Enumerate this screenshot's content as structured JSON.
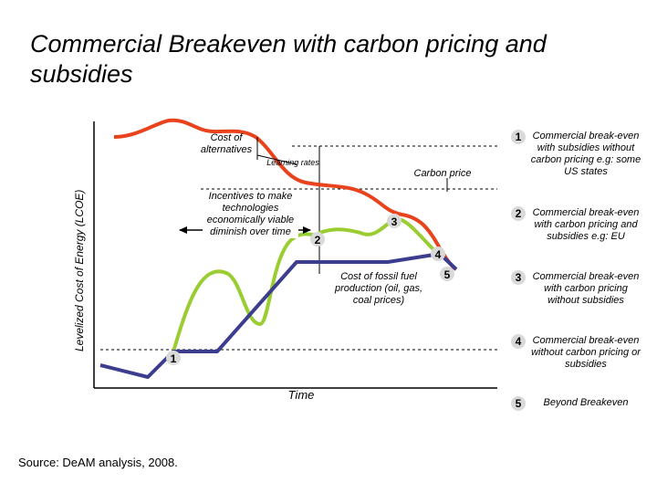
{
  "title": "Commercial Breakeven with carbon pricing and subsidies",
  "y_axis_label": "Levelized Cost of Energy (LCOE)",
  "x_axis_label": "Time",
  "annotations": {
    "cost_of_alternatives": "Cost of alternatives",
    "learning_rates": "Learning rates",
    "carbon_price": "Carbon price",
    "incentives": "Incentives to make technologies economically viable diminish over time",
    "fossil_cost": "Cost of fossil fuel production (oil, gas, coal prices)"
  },
  "markers": [
    "1",
    "2",
    "3",
    "4",
    "5"
  ],
  "legend": [
    {
      "num": "1",
      "text": "Commercial break-even with subsidies without carbon pricing e.g: some US states"
    },
    {
      "num": "2",
      "text": "Commercial break-even with carbon pricing and subsidies e.g: EU"
    },
    {
      "num": "3",
      "text": "Commercial break-even with carbon pricing without subsidies"
    },
    {
      "num": "4",
      "text": "Commercial break-even without carbon pricing or subsidies"
    },
    {
      "num": "5",
      "text": "Beyond Breakeven"
    }
  ],
  "source": "Source: DeAM analysis, 2008.",
  "colors": {
    "alternatives": "#e8431c",
    "green_subsidy": "#9acd32",
    "fossil": "#3d3d8f",
    "marker_bg": "#d9d9d9"
  }
}
